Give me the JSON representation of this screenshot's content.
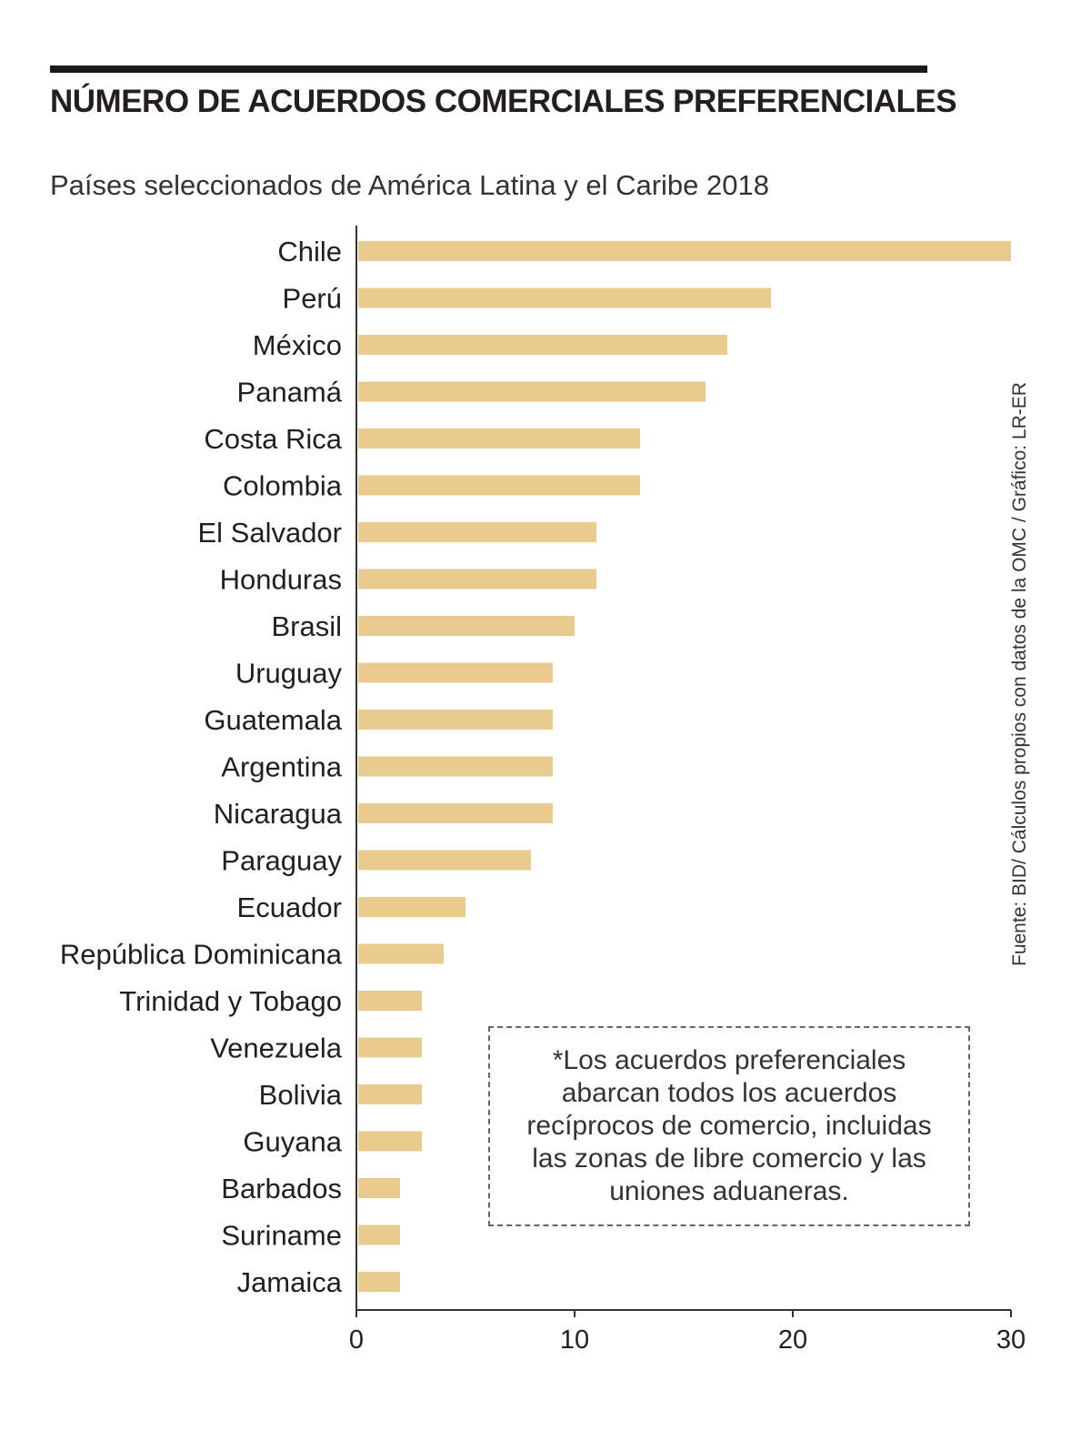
{
  "title": "NÚMERO DE ACUERDOS COMERCIALES PREFERENCIALES",
  "subtitle": "Países seleccionados de América Latina y el Caribe 2018",
  "source": "Fuente: BID/ Cálculos propios con datos de la OMC / Gráfico: LR-ER",
  "note": "*Los acuerdos preferenciales abarcan todos los acuerdos recíprocos de comercio, incluidas las zonas de libre comercio y las uniones aduaneras.",
  "colors": {
    "bar": "#e9cb8f",
    "axis": "#333333",
    "text": "#231f20"
  },
  "chart_data": {
    "type": "bar",
    "orientation": "horizontal",
    "title": "NÚMERO DE ACUERDOS COMERCIALES PREFERENCIALES",
    "subtitle": "Países seleccionados de América Latina y el Caribe 2018",
    "xlabel": "",
    "ylabel": "",
    "xlim": [
      0,
      30
    ],
    "xticks": [
      0,
      10,
      20,
      30
    ],
    "grid": false,
    "categories": [
      "Chile",
      "Perú",
      "México",
      "Panamá",
      "Costa Rica",
      "Colombia",
      "El Salvador",
      "Honduras",
      "Brasil",
      "Uruguay",
      "Guatemala",
      "Argentina",
      "Nicaragua",
      "Paraguay",
      "Ecuador",
      "República Dominicana",
      "Trinidad y Tobago",
      "Venezuela",
      "Bolivia",
      "Guyana",
      "Barbados",
      "Suriname",
      "Jamaica"
    ],
    "values": [
      30,
      19,
      17,
      16,
      13,
      13,
      11,
      11,
      10,
      9,
      9,
      9,
      9,
      8,
      5,
      4,
      3,
      3,
      3,
      3,
      2,
      2,
      2
    ]
  }
}
